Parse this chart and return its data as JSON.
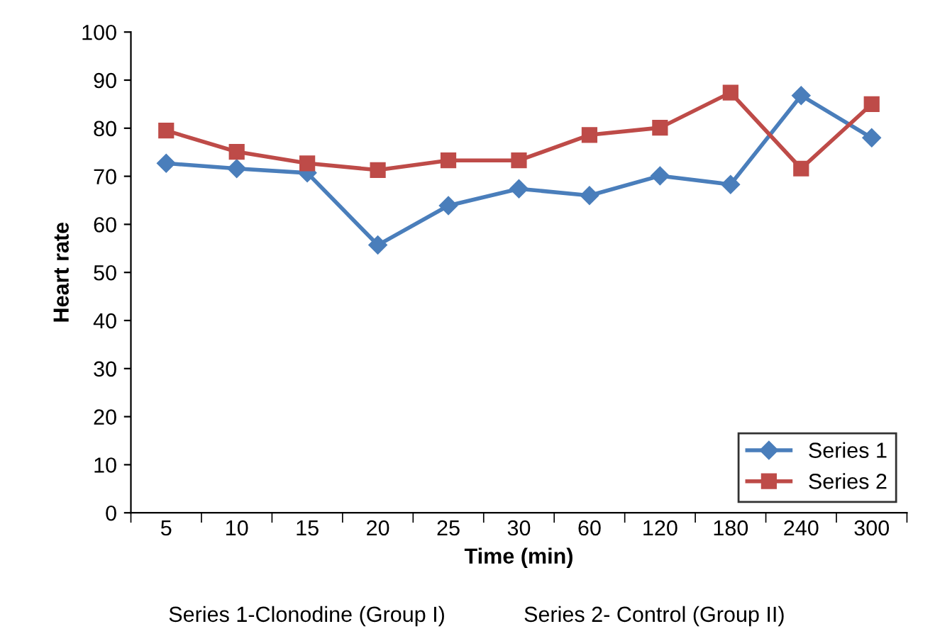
{
  "chart_data": {
    "type": "line",
    "xlabel": "Time (min)",
    "ylabel": "Heart rate",
    "categories": [
      "5",
      "10",
      "15",
      "20",
      "25",
      "30",
      "60",
      "120",
      "180",
      "240",
      "300"
    ],
    "series": [
      {
        "name": "Series 1",
        "color": "#4a7ebb",
        "marker": "diamond",
        "values": [
          72.7,
          71.6,
          70.7,
          55.7,
          63.9,
          67.4,
          66.0,
          70.1,
          68.3,
          86.8,
          78.0
        ]
      },
      {
        "name": "Series 2",
        "color": "#be4b48",
        "marker": "square",
        "values": [
          79.5,
          75.1,
          72.7,
          71.3,
          73.3,
          73.3,
          78.6,
          80.1,
          87.4,
          71.6,
          85.0
        ]
      }
    ],
    "ylim": [
      0,
      100
    ],
    "yticks": [
      0,
      10,
      20,
      30,
      40,
      50,
      60,
      70,
      80,
      90,
      100
    ],
    "grid": false,
    "legend": "bottom right",
    "line_style": "solid",
    "annotations": [
      "Series 1-Clonodine (Group I)",
      "Series 2- Control (Group II)"
    ]
  }
}
